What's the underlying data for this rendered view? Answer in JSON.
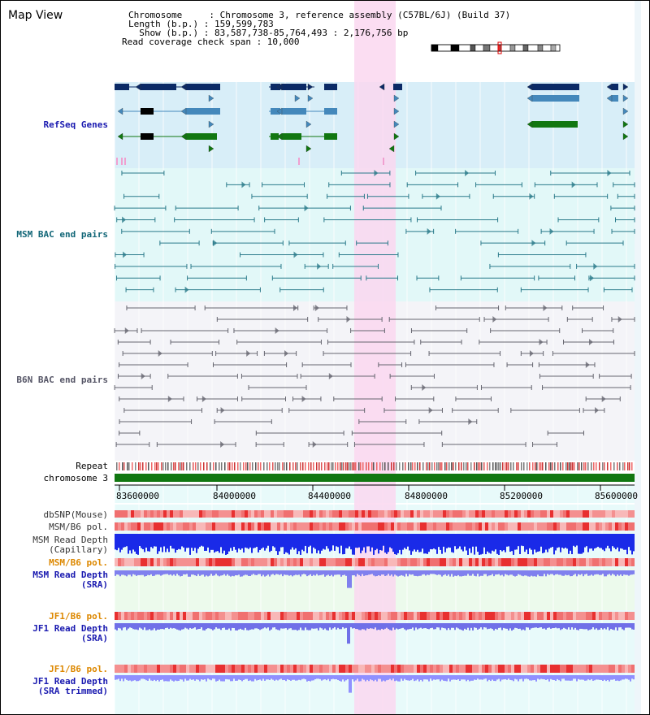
{
  "title": "Map View",
  "header": {
    "line1": "Chromosome     : Chromosome 3, reference assembly (C57BL/6J) (Build 37)",
    "line2": "Length (b.p.) : 159,599,783",
    "line3": "  Show (b.p.) : 83,587,738-85,764,493 : 2,176,756 bp",
    "line4": "Read coverage check span : 10,000"
  },
  "tracks": {
    "refseq": "RefSeq Genes",
    "msm_bac": "MSM BAC end pairs",
    "b6n_bac": "B6N BAC end pairs",
    "repeat": "Repeat",
    "chromosome": "chromosome 3",
    "dbsnp": "dbSNP(Mouse)",
    "msm_b6_pol": "MSM/B6 pol.",
    "msm_depth_cap": "MSM Read Depth\n(Capillary)",
    "msm_b6_pol2": "MSM/B6 pol.",
    "msm_depth_sra": "MSM Read Depth\n(SRA)",
    "jf1_b6_pol": "JF1/B6 pol.",
    "jf1_depth_sra": "JF1 Read Depth\n(SRA)",
    "jf1_b6_pol2": "JF1/B6 pol.",
    "jf1_depth_trim": "JF1 Read Depth\n(SRA trimmed)"
  },
  "axis": {
    "ticks": [
      "83600000",
      "84000000",
      "84400000",
      "84800000",
      "85200000",
      "85600000"
    ]
  },
  "colors": {
    "refseq_label": "#1a1ab0",
    "msm_label": "#116677",
    "b6n_label": "#555566",
    "orange_label": "#dd8800",
    "blue_label": "#1a1ab0",
    "highlight": "#fad7f0",
    "chromosome_bar": "#117711"
  }
}
